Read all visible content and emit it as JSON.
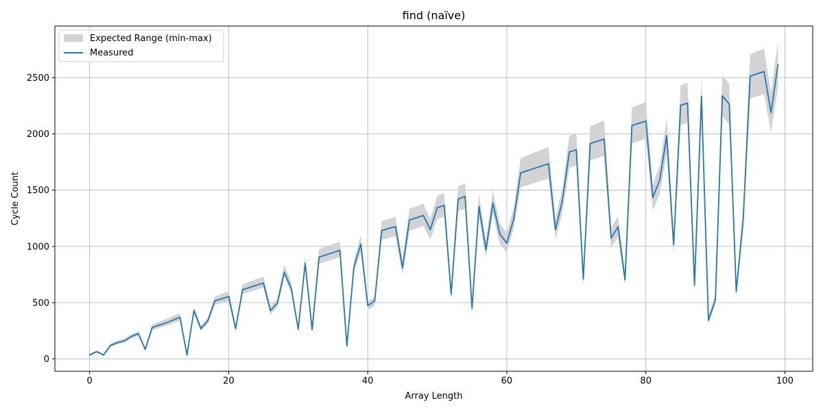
{
  "chart_data": {
    "type": "line",
    "title": "find (naïve)",
    "xlabel": "Array Length",
    "ylabel": "Cycle Count",
    "xlim": [
      -5,
      104
    ],
    "ylim": [
      -110,
      2960
    ],
    "x_ticks": [
      0,
      20,
      40,
      60,
      80,
      100
    ],
    "y_ticks": [
      0,
      500,
      1000,
      1500,
      2000,
      2500
    ],
    "grid": true,
    "legend_position": "top-left",
    "colors": {
      "measured": "#1f77b4",
      "range": "#d3d3d3",
      "grid": "#b0b0b0"
    },
    "x": [
      0,
      1,
      2,
      3,
      4,
      5,
      6,
      7,
      8,
      9,
      10,
      11,
      12,
      13,
      14,
      15,
      16,
      17,
      18,
      19,
      20,
      21,
      22,
      23,
      24,
      25,
      26,
      27,
      28,
      29,
      30,
      31,
      32,
      33,
      34,
      35,
      36,
      37,
      38,
      39,
      40,
      41,
      42,
      43,
      44,
      45,
      46,
      47,
      48,
      49,
      50,
      51,
      52,
      53,
      54,
      55,
      56,
      57,
      58,
      59,
      60,
      61,
      62,
      63,
      64,
      65,
      66,
      67,
      68,
      69,
      70,
      71,
      72,
      73,
      74,
      75,
      76,
      77,
      78,
      79,
      80,
      81,
      82,
      83,
      84,
      85,
      86,
      87,
      88,
      89,
      90,
      91,
      92,
      93,
      94,
      95,
      96,
      97,
      98,
      99
    ],
    "series": [
      {
        "name": "Measured",
        "values": [
          35,
          65,
          35,
          120,
          145,
          160,
          200,
          225,
          85,
          280,
          300,
          320,
          345,
          370,
          35,
          430,
          270,
          340,
          515,
          535,
          555,
          270,
          615,
          635,
          655,
          675,
          430,
          495,
          770,
          625,
          265,
          850,
          260,
          905,
          925,
          945,
          965,
          115,
          815,
          1020,
          475,
          515,
          1140,
          1160,
          1175,
          810,
          1235,
          1255,
          1275,
          1150,
          1345,
          1365,
          575,
          1420,
          1445,
          450,
          1355,
          970,
          1385,
          1110,
          1030,
          1245,
          1655,
          1675,
          1695,
          1715,
          1735,
          1150,
          1410,
          1840,
          1860,
          710,
          1915,
          1935,
          1955,
          1075,
          1175,
          705,
          2075,
          2095,
          2115,
          1435,
          1590,
          1985,
          1015,
          2255,
          2275,
          655,
          2335,
          345,
          525,
          2340,
          2265,
          600,
          1240,
          2515,
          2535,
          2555,
          2190,
          2615
        ]
      }
    ],
    "range": {
      "name": "Expected Range (min-max)",
      "min": [
        25,
        55,
        25,
        105,
        130,
        145,
        180,
        205,
        70,
        255,
        275,
        295,
        315,
        340,
        25,
        400,
        245,
        310,
        480,
        495,
        515,
        240,
        580,
        595,
        615,
        635,
        395,
        460,
        730,
        590,
        245,
        800,
        240,
        845,
        865,
        885,
        905,
        100,
        760,
        950,
        435,
        475,
        1060,
        1075,
        1090,
        745,
        1140,
        1160,
        1180,
        1060,
        1245,
        1265,
        525,
        1315,
        1335,
        410,
        1260,
        895,
        1290,
        1020,
        945,
        1160,
        1525,
        1545,
        1565,
        1585,
        1605,
        1060,
        1305,
        1700,
        1720,
        650,
        1765,
        1785,
        1805,
        985,
        1085,
        650,
        1915,
        1935,
        1955,
        1320,
        1465,
        1830,
        935,
        2080,
        2100,
        600,
        2150,
        310,
        485,
        2155,
        2085,
        555,
        1140,
        2315,
        2335,
        2355,
        2010,
        2410
      ],
      "max": [
        45,
        75,
        45,
        135,
        160,
        180,
        220,
        245,
        100,
        305,
        330,
        355,
        380,
        405,
        45,
        465,
        295,
        370,
        555,
        580,
        600,
        300,
        665,
        685,
        710,
        730,
        470,
        535,
        835,
        680,
        290,
        915,
        285,
        975,
        1000,
        1020,
        1045,
        130,
        875,
        1100,
        515,
        555,
        1225,
        1245,
        1265,
        875,
        1335,
        1355,
        1380,
        1245,
        1450,
        1475,
        625,
        1535,
        1560,
        490,
        1470,
        1050,
        1500,
        1205,
        1120,
        1350,
        1785,
        1810,
        1835,
        1860,
        1885,
        1245,
        1525,
        1985,
        2010,
        770,
        2070,
        2095,
        2120,
        1165,
        1270,
        760,
        2235,
        2260,
        2285,
        1555,
        1720,
        2140,
        1100,
        2430,
        2455,
        710,
        2515,
        380,
        570,
        2525,
        2445,
        650,
        1340,
        2710,
        2735,
        2760,
        2370,
        2820
      ]
    }
  }
}
